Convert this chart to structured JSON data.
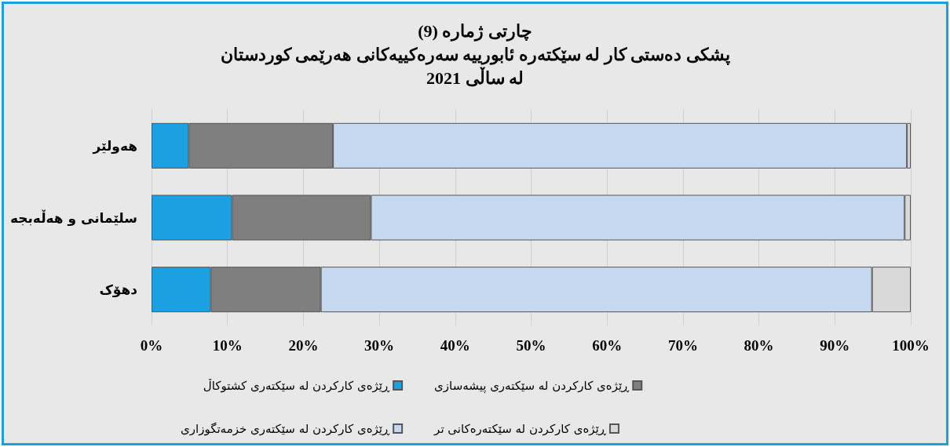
{
  "chart_data": {
    "type": "bar",
    "orientation": "horizontal",
    "stacked": true,
    "title": "چارتی ژمارە (9)\nپشکی دەستی کار لە سێکتەرە ئابورییە سەرەکییەکانی هەرێمی کوردستان\nلە ساڵی 2021",
    "categories": [
      "هەولێر",
      "سلێمانی و هەڵەبجە",
      "دهۆک"
    ],
    "series": [
      {
        "name": "ڕێژەی کارکردن لە سێکتەری کشتوکاڵ",
        "color": "#1ba1e2",
        "values": [
          4.9,
          10.6,
          7.8
        ]
      },
      {
        "name": "ڕێژەی کارکردن لە سێکتەری پیشەسازی",
        "color": "#7f7f7f",
        "values": [
          19.0,
          18.3,
          14.5
        ]
      },
      {
        "name": "ڕێژەی کارکردن لە سێکتەری خزمەتگوزاری",
        "color": "#c6d9f1",
        "values": [
          75.6,
          70.3,
          72.6
        ]
      },
      {
        "name": "ڕێژەی کارکردن لە سێکتەرەکانی تر",
        "color": "#d9d9d9",
        "values": [
          0.5,
          0.8,
          5.1
        ]
      }
    ],
    "xlim": [
      0,
      100
    ],
    "xticks": [
      {
        "value": 0,
        "label": "0%"
      },
      {
        "value": 10,
        "label": "10%"
      },
      {
        "value": 20,
        "label": "20%"
      },
      {
        "value": 30,
        "label": "30%"
      },
      {
        "value": 40,
        "label": "40%"
      },
      {
        "value": 50,
        "label": "50%"
      },
      {
        "value": 60,
        "label": "60%"
      },
      {
        "value": 70,
        "label": "70%"
      },
      {
        "value": 80,
        "label": "80%"
      },
      {
        "value": 90,
        "label": "90%"
      },
      {
        "value": 100,
        "label": "100%"
      }
    ],
    "grid": "x",
    "legend": "bottom"
  }
}
